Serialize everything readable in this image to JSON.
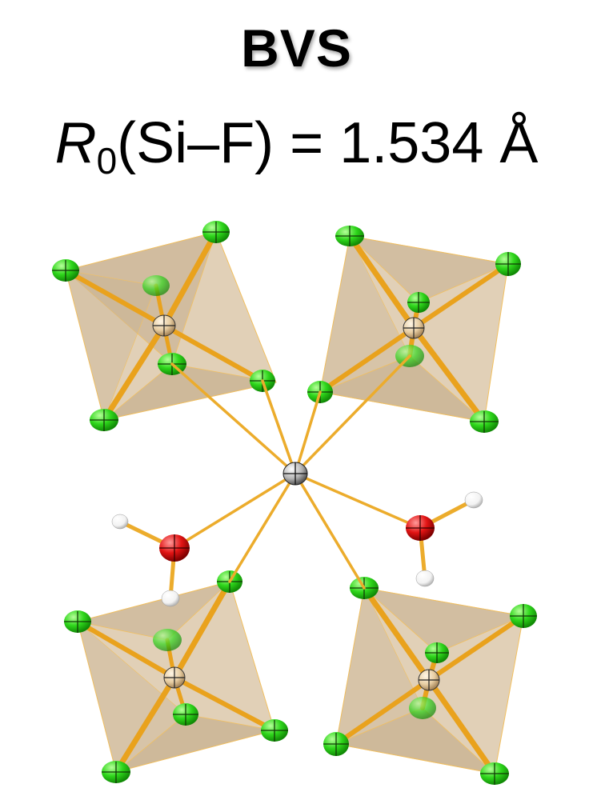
{
  "title": "BVS",
  "formula": {
    "symbol": "R",
    "subscript": "0",
    "bond": "(Si–F) = 1.534 Å"
  },
  "colors": {
    "fluorine": "#33dd22",
    "silicon": "#e8cfa5",
    "center_metal": "#a9a9a9",
    "oxygen": "#dd1111",
    "hydrogen": "#ffffff",
    "bond": "#f0a820",
    "octahedron_face": "#d9c3a2"
  },
  "structure": {
    "center_atom": "metal-atom-gray",
    "octahedra_count": 4,
    "water_molecules": 2
  }
}
